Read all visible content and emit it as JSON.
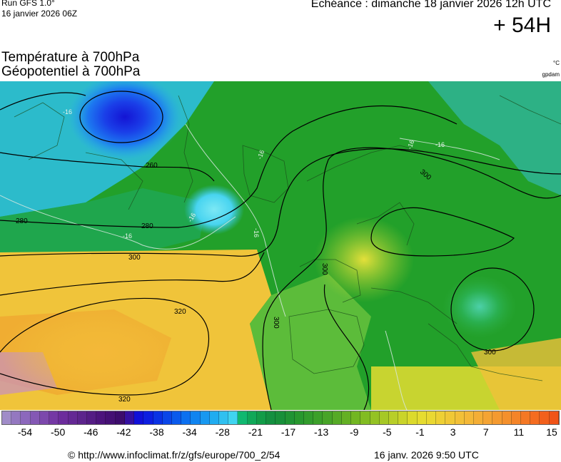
{
  "header": {
    "run_label": "Run GFS 1.0°",
    "run_date": "16 janvier 2026 06Z",
    "echeance": "Echéance : dimanche 18 janvier 2026 12h UTC",
    "lead_time": "+ 54H"
  },
  "titles": {
    "line1": "Température à 700hPa",
    "line2": "Géopotentiel à 700hPa",
    "unit_temp": "°C",
    "unit_geo": "gpdam"
  },
  "map": {
    "isohypse_labels": [
      "260",
      "280",
      "280",
      "300",
      "320",
      "320",
      "300",
      "300",
      "300",
      "300"
    ],
    "isotherm_labels": [
      "-16",
      "-16",
      "-16",
      "-16",
      "-16",
      "-16",
      "-16"
    ],
    "colors": {
      "cold_core": "#1a1ad8",
      "cyan": "#48d8f0",
      "green": "#1e9e28",
      "light_green": "#6cc83a",
      "yellow": "#e8e030",
      "orange": "#f0a028"
    }
  },
  "colorbar": {
    "colors": [
      "#a08cc8",
      "#9478c0",
      "#8c68bc",
      "#8458b4",
      "#7c48ac",
      "#7438a4",
      "#6c2c9c",
      "#642894",
      "#5c248c",
      "#541c84",
      "#4c147c",
      "#441074",
      "#3c0c6c",
      "#3410a0",
      "#1010d8",
      "#0c1ee0",
      "#0a32e4",
      "#0a46e8",
      "#0a5aec",
      "#0c70f0",
      "#1084f0",
      "#1898f0",
      "#20acf0",
      "#30c0f0",
      "#40d4f0",
      "#10b870",
      "#10a858",
      "#129c48",
      "#149040",
      "#18903a",
      "#209434",
      "#28982e",
      "#329c2c",
      "#3ca02a",
      "#48a428",
      "#56aa26",
      "#64b024",
      "#72b622",
      "#82bc22",
      "#94c224",
      "#a6c826",
      "#b8ce28",
      "#cad42a",
      "#dcda2c",
      "#e6dc30",
      "#ead832",
      "#eed034",
      "#f0c836",
      "#f2c038",
      "#f4b838",
      "#f4ae36",
      "#f4a434",
      "#f49a30",
      "#f4902c",
      "#f48428",
      "#f47824",
      "#f46c20",
      "#f2601c",
      "#f05418"
    ],
    "ticks": [
      "-54",
      "-50",
      "-46",
      "-42",
      "-38",
      "-34",
      "-28",
      "-21",
      "-17",
      "-13",
      "-9",
      "-5",
      "-1",
      "3",
      "7",
      "11",
      "15"
    ]
  },
  "footer": {
    "credit": "© http://www.infoclimat.fr/z/gfs/europe/700_2/54",
    "stamp": "16 janv. 2026  9:50 UTC"
  }
}
